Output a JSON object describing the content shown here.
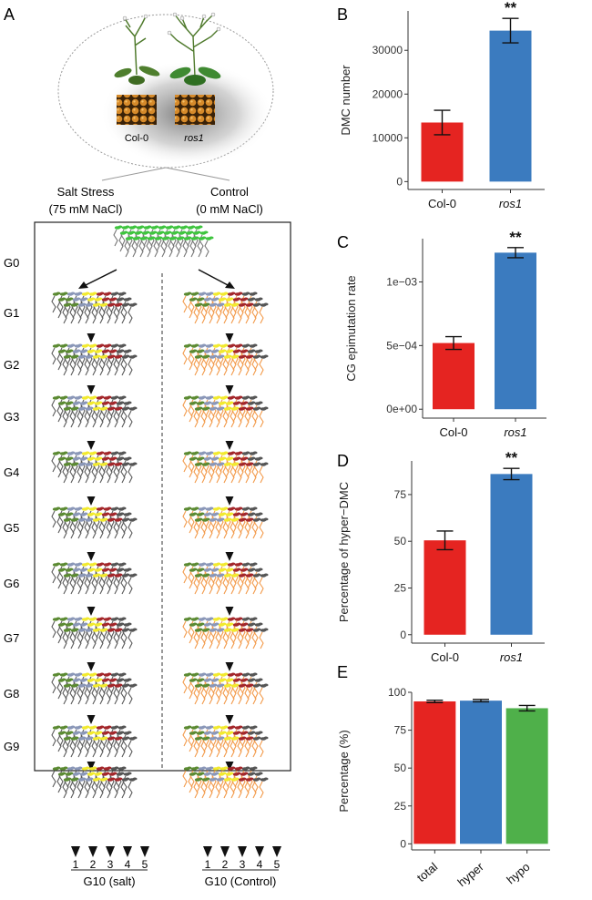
{
  "panel_a": {
    "label": "A",
    "genotypes": [
      "Col-0",
      "ros1"
    ],
    "salt_title_1": "Salt Stress",
    "salt_title_2": "(75 mM NaCl)",
    "control_title_1": "Control",
    "control_title_2": "(0 mM NaCl)",
    "generations": [
      "G0",
      "G1",
      "G2",
      "G3",
      "G4",
      "G5",
      "G6",
      "G7",
      "G8",
      "G9"
    ],
    "lines": [
      "1",
      "2",
      "3",
      "4",
      "5"
    ],
    "g10_salt": "G10 (salt)",
    "g10_control": "G10 (Control)",
    "colors": {
      "founder": "#3ec43e",
      "salt_roots": "#5a5a5a",
      "control_roots": "#f39a4a",
      "green": "#5b8a32",
      "blue": "#8a97b8",
      "yellow": "#f2ea2e",
      "red": "#a3262a",
      "grey": "#555555"
    }
  },
  "chart_data": [
    {
      "panel": "B",
      "type": "bar",
      "categories": [
        "Col-0",
        "ros1"
      ],
      "values": [
        13500,
        34500
      ],
      "errors": [
        2800,
        2800
      ],
      "ylabel": "DMC number",
      "yticks": [
        "0",
        "10000",
        "20000",
        "30000"
      ],
      "ytick_values": [
        0,
        10000,
        20000,
        30000
      ],
      "ylim": [
        -1800,
        39000
      ],
      "significance": "**",
      "colors": [
        "#e52421",
        "#3b7bbf"
      ]
    },
    {
      "panel": "C",
      "type": "bar",
      "categories": [
        "Col-0",
        "ros1"
      ],
      "values": [
        0.00052,
        0.00123
      ],
      "errors": [
        5e-05,
        4e-05
      ],
      "ylabel": "CG epimutation rate",
      "yticks": [
        "0e+00",
        "5e−04",
        "1e−03"
      ],
      "ytick_values": [
        0,
        0.0005,
        0.001
      ],
      "ylim": [
        -7e-05,
        0.00134
      ],
      "significance": "**",
      "colors": [
        "#e52421",
        "#3b7bbf"
      ]
    },
    {
      "panel": "D",
      "type": "bar",
      "categories": [
        "Col-0",
        "ros1"
      ],
      "values": [
        50.5,
        86
      ],
      "errors": [
        5,
        3
      ],
      "ylabel": "Percentage of hyper−DMC",
      "yticks": [
        "0",
        "25",
        "50",
        "75"
      ],
      "ytick_values": [
        0,
        25,
        50,
        75
      ],
      "ylim": [
        -4.5,
        93
      ],
      "significance": "**",
      "colors": [
        "#e52421",
        "#3b7bbf"
      ]
    },
    {
      "panel": "E",
      "type": "bar",
      "categories": [
        "total",
        "hyper",
        "hypo"
      ],
      "values": [
        94,
        94.5,
        89.5
      ],
      "errors": [
        0.8,
        0.8,
        1.8
      ],
      "ylabel": "Percentage (%)",
      "yticks": [
        "0",
        "25",
        "50",
        "75",
        "100"
      ],
      "ytick_values": [
        0,
        25,
        50,
        75,
        100
      ],
      "ylim": [
        -4,
        100
      ],
      "significance": "",
      "colors": [
        "#e52421",
        "#3b7bbf",
        "#4fb04a"
      ]
    }
  ]
}
